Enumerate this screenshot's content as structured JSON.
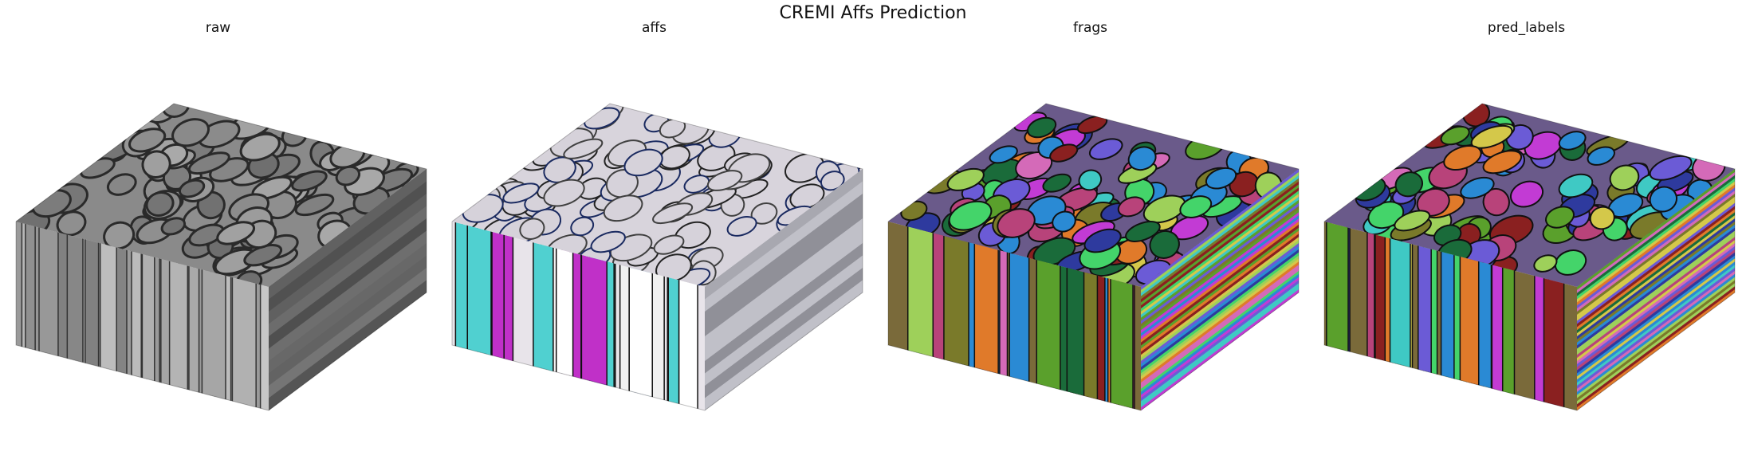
{
  "figure": {
    "title": "CREMI Affs Prediction"
  },
  "panels": [
    {
      "title": "raw",
      "style": "gray"
    },
    {
      "title": "affs",
      "style": "affs"
    },
    {
      "title": "frags",
      "style": "frags"
    },
    {
      "title": "pred_labels",
      "style": "labels"
    }
  ],
  "colors": {
    "gray_top": "#8a8a8a",
    "gray_front": "#9a9a9a",
    "gray_side": "#5f5f5f",
    "membrane": "#2a2a2a",
    "segment_palette": [
      "#c23bd4",
      "#5aa02c",
      "#2e3a9e",
      "#d4c84a",
      "#1a6b3a",
      "#b8437a",
      "#3fc9c4",
      "#8a2020",
      "#e07a2a",
      "#6b5bd6",
      "#9ed05a",
      "#d46ab8",
      "#2a8ad4",
      "#7a7a2a",
      "#44d46a"
    ]
  }
}
